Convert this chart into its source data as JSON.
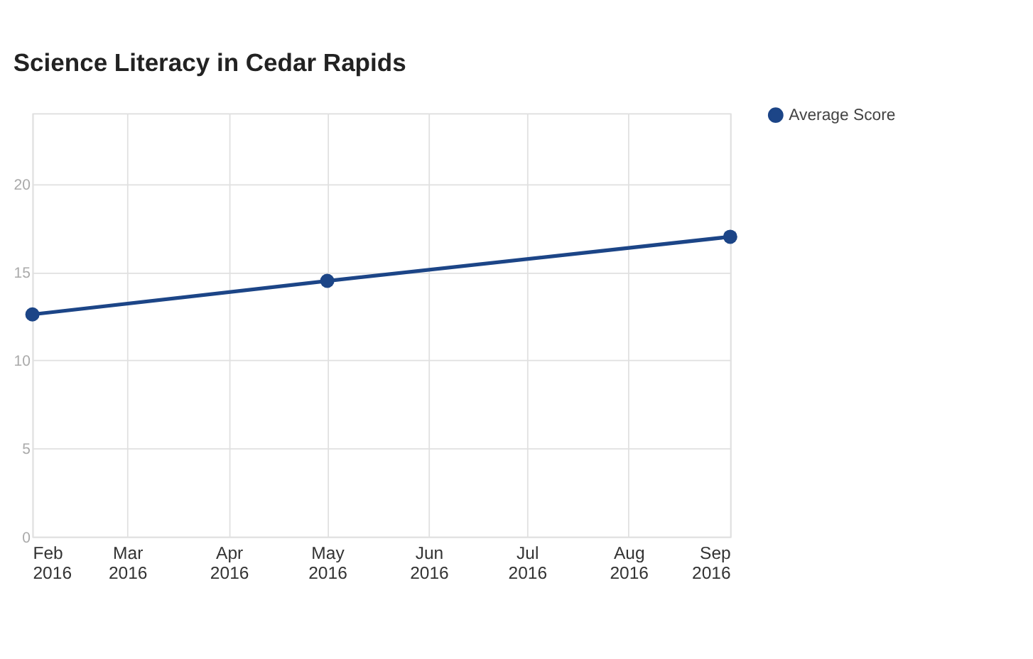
{
  "chart_data": {
    "type": "line",
    "title": "Science Literacy in Cedar Rapids",
    "x": [
      "2016-02",
      "2016-05",
      "2016-09"
    ],
    "series": [
      {
        "name": "Average Score",
        "color": "#1c4587",
        "values": [
          12.6,
          14.5,
          17.0
        ]
      }
    ],
    "xlim": [
      "2016-02",
      "2016-09"
    ],
    "xticks": [
      {
        "value": "2016-02",
        "label": "Feb 2016"
      },
      {
        "value": "2016-03",
        "label": "Mar 2016"
      },
      {
        "value": "2016-04",
        "label": "Apr 2016"
      },
      {
        "value": "2016-05",
        "label": "May 2016"
      },
      {
        "value": "2016-06",
        "label": "Jun 2016"
      },
      {
        "value": "2016-07",
        "label": "Jul 2016"
      },
      {
        "value": "2016-08",
        "label": "Aug 2016"
      },
      {
        "value": "2016-09",
        "label": "Sep 2016"
      }
    ],
    "ylim": [
      0,
      24
    ],
    "yticks": [
      0,
      5,
      10,
      15,
      20
    ],
    "grid": true,
    "legend": "top right",
    "marker": "circle",
    "line_style": "solid"
  }
}
